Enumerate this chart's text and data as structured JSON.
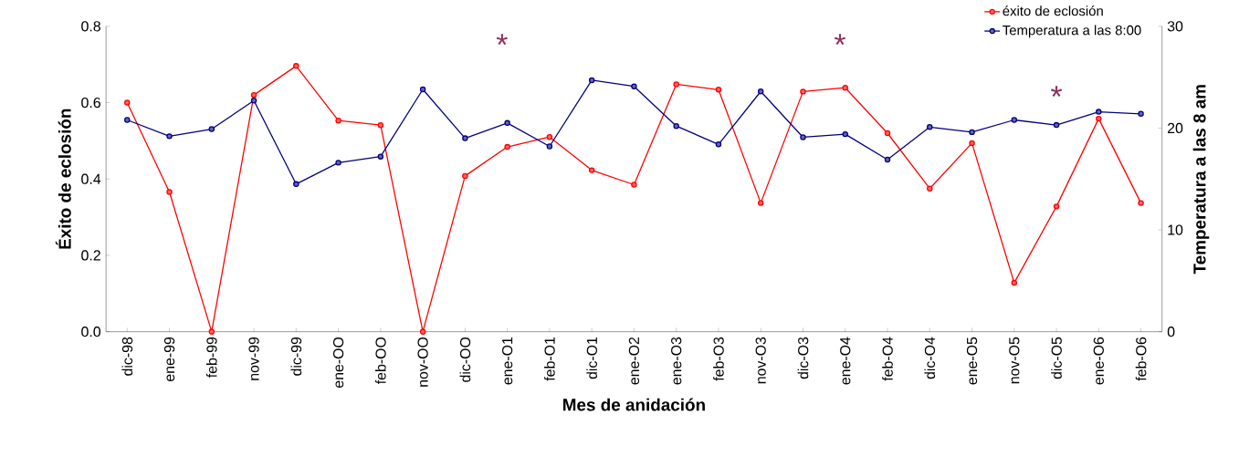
{
  "chart_data": {
    "type": "line",
    "xlabel": "Mes de anidación",
    "ylabel": "Éxito de eclosión",
    "y2label": "Temperatura a las 8 am",
    "categories": [
      "dic-98",
      "ene-99",
      "feb-99",
      "nov-99",
      "dic-99",
      "ene-OO",
      "feb-OO",
      "nov-OO",
      "dic-OO",
      "ene-O1",
      "feb-O1",
      "dic-O1",
      "ene-O2",
      "ene-O3",
      "feb-O3",
      "nov-O3",
      "dic-O3",
      "ene-O4",
      "feb-O4",
      "dic-O4",
      "ene-O5",
      "nov-O5",
      "dic-O5",
      "ene-O6",
      "feb-O6"
    ],
    "series": [
      {
        "name": "éxito de eclosión",
        "color": "#ff0000",
        "values": [
          0.6,
          0.366,
          0,
          0.62,
          0.696,
          0.553,
          0.541,
          0,
          0.408,
          0.484,
          0.51,
          0.423,
          0.385,
          0.648,
          0.634,
          0.337,
          0.629,
          0.639,
          0.52,
          0.375,
          0.494,
          0.128,
          0.328,
          0.558,
          0.337
        ]
      },
      {
        "name": "Temperatura a las 8:00",
        "color": "#000080",
        "axis": "y2",
        "values": [
          20.8,
          19.2,
          19.9,
          22.7,
          14.5,
          16.6,
          17.2,
          23.8,
          19.0,
          20.5,
          18.2,
          24.7,
          24.1,
          20.2,
          18.4,
          23.6,
          19.1,
          19.4,
          16.9,
          20.1,
          19.6,
          20.8,
          20.3,
          21.6,
          21.4
        ]
      }
    ],
    "ylim": [
      0,
      0.8
    ],
    "yticks": [
      {
        "value": 0,
        "label": "0.0"
      },
      {
        "value": 0.2,
        "label": "0.2"
      },
      {
        "value": 0.4,
        "label": "0.4"
      },
      {
        "value": 0.6,
        "label": "0.6"
      },
      {
        "value": 0.8,
        "label": "0.8"
      }
    ],
    "y2lim": [
      0,
      30
    ],
    "y2ticks": [
      0,
      10,
      20,
      30
    ],
    "marker": "circle",
    "legend": "top right",
    "annotations": [
      "*",
      "*",
      "*"
    ]
  }
}
